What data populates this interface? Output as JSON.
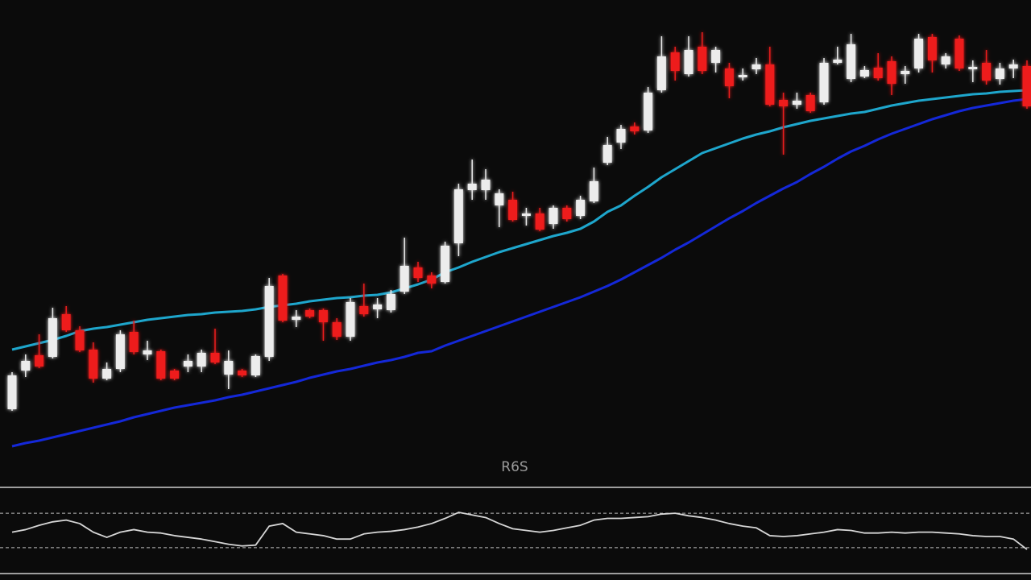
{
  "chart_data": [
    {
      "type": "candlestick",
      "open": [
        92,
        140,
        159,
        157,
        210,
        190,
        166,
        130,
        142,
        188,
        160,
        164,
        140,
        145,
        145,
        162,
        135,
        140,
        134,
        157,
        258,
        203,
        215,
        215,
        200,
        182,
        220,
        216,
        215,
        238,
        268,
        258,
        250,
        298,
        364,
        364,
        345,
        352,
        332,
        335,
        322,
        342,
        332,
        350,
        398,
        423,
        443,
        438,
        488,
        535,
        508,
        542,
        522,
        515,
        504,
        514,
        520,
        476,
        470,
        482,
        473,
        522,
        502,
        505,
        516,
        524,
        508,
        515,
        554,
        520,
        552,
        514,
        522,
        502,
        515,
        518
      ],
      "high": [
        138,
        160,
        185,
        218,
        220,
        195,
        175,
        150,
        190,
        202,
        177,
        166,
        142,
        160,
        166,
        192,
        165,
        142,
        160,
        255,
        260,
        215,
        217,
        217,
        205,
        230,
        248,
        230,
        240,
        305,
        275,
        262,
        300,
        372,
        402,
        390,
        365,
        362,
        342,
        342,
        345,
        345,
        357,
        392,
        430,
        445,
        448,
        492,
        555,
        542,
        555,
        560,
        542,
        522,
        515,
        528,
        542,
        485,
        485,
        485,
        528,
        542,
        558,
        518,
        534,
        530,
        518,
        558,
        558,
        534,
        556,
        525,
        538,
        522,
        526,
        525
      ],
      "low": [
        90,
        132,
        143,
        155,
        188,
        163,
        125,
        128,
        138,
        160,
        153,
        128,
        128,
        138,
        138,
        148,
        117,
        132,
        132,
        152,
        200,
        194,
        205,
        177,
        178,
        177,
        207,
        205,
        212,
        235,
        250,
        242,
        248,
        282,
        352,
        352,
        318,
        325,
        320,
        313,
        316,
        325,
        328,
        348,
        395,
        415,
        433,
        435,
        485,
        500,
        505,
        508,
        510,
        478,
        500,
        508,
        468,
        408,
        465,
        460,
        470,
        520,
        498,
        503,
        500,
        482,
        496,
        510,
        510,
        515,
        512,
        498,
        495,
        495,
        503,
        465
      ],
      "close": [
        134,
        152,
        145,
        205,
        190,
        165,
        130,
        142,
        185,
        163,
        165,
        130,
        130,
        152,
        162,
        150,
        152,
        134,
        158,
        245,
        202,
        207,
        207,
        200,
        182,
        225,
        210,
        222,
        235,
        270,
        255,
        248,
        295,
        365,
        372,
        377,
        360,
        327,
        335,
        315,
        342,
        328,
        352,
        375,
        420,
        440,
        437,
        485,
        530,
        512,
        538,
        512,
        538,
        493,
        507,
        520,
        470,
        468,
        475,
        462,
        522,
        526,
        545,
        513,
        503,
        496,
        512,
        552,
        525,
        530,
        515,
        517,
        500,
        515,
        520,
        468
      ],
      "up_color": "#ececec",
      "down_color": "#ee1c1c",
      "ylim": [
        0,
        600
      ],
      "overlays": [
        {
          "color": "#1ea6cc",
          "values": [
            166,
            170,
            174,
            178,
            183,
            189,
            192,
            194,
            197,
            200,
            203,
            205,
            207,
            209,
            210,
            212,
            213,
            214,
            216,
            219,
            221,
            223,
            226,
            228,
            230,
            231,
            233,
            234,
            237,
            242,
            247,
            253,
            262,
            268,
            275,
            281,
            287,
            292,
            297,
            302,
            307,
            311,
            316,
            325,
            337,
            345,
            357,
            368,
            380,
            390,
            400,
            410,
            416,
            422,
            428,
            433,
            437,
            442,
            446,
            450,
            453,
            456,
            459,
            461,
            465,
            469,
            472,
            475,
            477,
            479,
            481,
            483,
            484,
            486,
            487,
            488
          ]
        },
        {
          "color": "#1428d8",
          "values": [
            46,
            50,
            53,
            57,
            61,
            65,
            69,
            73,
            77,
            82,
            86,
            90,
            94,
            97,
            100,
            103,
            107,
            110,
            114,
            118,
            122,
            126,
            131,
            135,
            139,
            142,
            146,
            150,
            153,
            157,
            162,
            164,
            171,
            177,
            183,
            189,
            195,
            201,
            207,
            213,
            219,
            225,
            231,
            238,
            245,
            253,
            262,
            271,
            280,
            290,
            299,
            309,
            319,
            329,
            338,
            348,
            357,
            366,
            374,
            384,
            393,
            403,
            412,
            419,
            427,
            434,
            440,
            446,
            452,
            457,
            462,
            466,
            469,
            472,
            475,
            477
          ]
        }
      ]
    },
    {
      "type": "line",
      "title": "R6S",
      "values": [
        48,
        51,
        56,
        60,
        62,
        58,
        48,
        42,
        48,
        51,
        48,
        47,
        44,
        42,
        40,
        37,
        34,
        32,
        33,
        55,
        58,
        48,
        46,
        44,
        40,
        40,
        46,
        48,
        49,
        51,
        54,
        58,
        64,
        71,
        68,
        65,
        58,
        52,
        50,
        48,
        50,
        53,
        56,
        62,
        64,
        64,
        65,
        66,
        69,
        70,
        67,
        65,
        62,
        58,
        55,
        53,
        44,
        43,
        44,
        46,
        48,
        51,
        50,
        47,
        47,
        48,
        47,
        48,
        48,
        47,
        46,
        44,
        43,
        43,
        40,
        28
      ],
      "color": "#d6d6d6",
      "ylim": [
        0,
        100
      ],
      "levels": [
        70,
        30
      ]
    }
  ]
}
